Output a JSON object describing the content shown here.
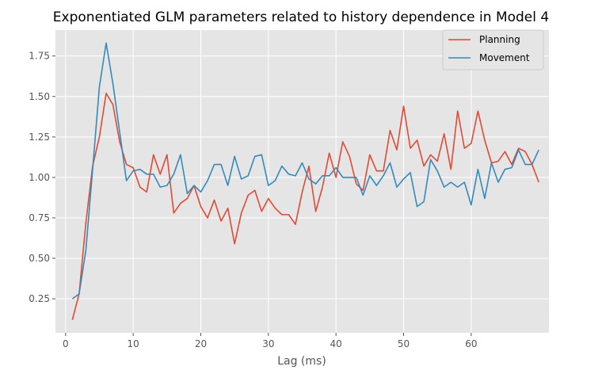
{
  "chart_data": {
    "type": "line",
    "title": "Exponentiated GLM parameters related to history dependence in Model 4",
    "xlabel": "Lag (ms)",
    "ylabel": "",
    "xlim": [
      -1.5,
      71.5
    ],
    "ylim": [
      0.04,
      1.91
    ],
    "xticks": [
      0,
      10,
      20,
      30,
      40,
      50,
      60
    ],
    "yticks": [
      0.25,
      0.5,
      0.75,
      1.0,
      1.25,
      1.5,
      1.75
    ],
    "ytick_labels": [
      "0.25",
      "0.50",
      "0.75",
      "1.00",
      "1.25",
      "1.50",
      "1.75"
    ],
    "grid": true,
    "legend_position": "top-right",
    "x": [
      1,
      2,
      3,
      4,
      5,
      6,
      7,
      8,
      9,
      10,
      11,
      12,
      13,
      14,
      15,
      16,
      17,
      18,
      19,
      20,
      21,
      22,
      23,
      24,
      25,
      26,
      27,
      28,
      29,
      30,
      31,
      32,
      33,
      34,
      35,
      36,
      37,
      38,
      39,
      40,
      41,
      42,
      43,
      44,
      45,
      46,
      47,
      48,
      49,
      50,
      51,
      52,
      53,
      54,
      55,
      56,
      57,
      58,
      59,
      60,
      61,
      62,
      63,
      64,
      65,
      66,
      67,
      68,
      69,
      70
    ],
    "series": [
      {
        "name": "Planning",
        "color": "#E24A33",
        "values": [
          0.12,
          0.28,
          0.72,
          1.07,
          1.25,
          1.52,
          1.45,
          1.22,
          1.08,
          1.06,
          0.94,
          0.91,
          1.14,
          1.02,
          1.14,
          0.78,
          0.84,
          0.87,
          0.95,
          0.82,
          0.75,
          0.86,
          0.73,
          0.81,
          0.59,
          0.78,
          0.89,
          0.92,
          0.79,
          0.87,
          0.81,
          0.77,
          0.77,
          0.71,
          0.91,
          1.07,
          0.79,
          0.94,
          1.15,
          1.0,
          1.22,
          1.13,
          0.96,
          0.92,
          1.14,
          1.04,
          1.04,
          1.29,
          1.17,
          1.44,
          1.18,
          1.23,
          1.07,
          1.14,
          1.1,
          1.27,
          1.05,
          1.41,
          1.18,
          1.21,
          1.41,
          1.23,
          1.09,
          1.1,
          1.16,
          1.08,
          1.18,
          1.16,
          1.08,
          0.97
        ]
      },
      {
        "name": "Movement",
        "color": "#348ABD",
        "values": [
          0.25,
          0.28,
          0.55,
          1.05,
          1.56,
          1.83,
          1.58,
          1.28,
          0.98,
          1.04,
          1.05,
          1.02,
          1.02,
          0.94,
          0.95,
          1.02,
          1.14,
          0.9,
          0.95,
          0.91,
          0.98,
          1.08,
          1.08,
          0.95,
          1.13,
          0.99,
          1.01,
          1.13,
          1.14,
          0.95,
          0.98,
          1.07,
          1.02,
          1.01,
          1.09,
          0.99,
          0.96,
          1.01,
          1.01,
          1.06,
          1.0,
          1.0,
          1.0,
          0.89,
          1.01,
          0.95,
          1.01,
          1.09,
          0.94,
          0.99,
          1.03,
          0.82,
          0.85,
          1.11,
          1.04,
          0.94,
          0.97,
          0.94,
          0.97,
          0.83,
          1.05,
          0.87,
          1.09,
          0.97,
          1.05,
          1.06,
          1.17,
          1.08,
          1.08,
          1.17
        ]
      }
    ]
  }
}
